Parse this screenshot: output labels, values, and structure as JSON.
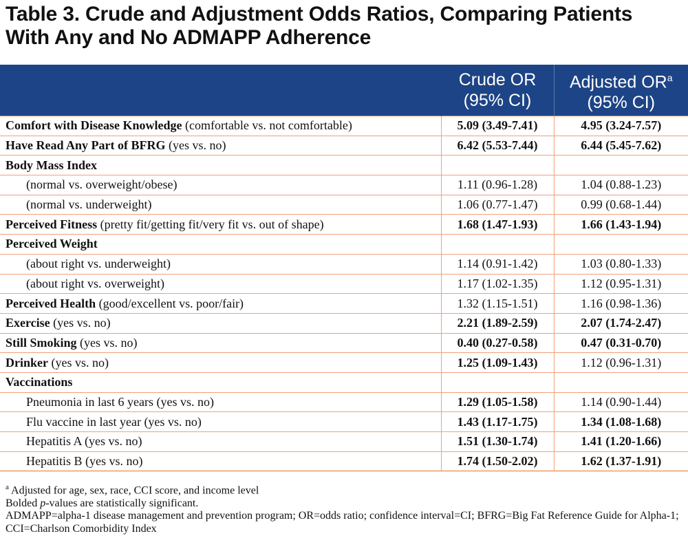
{
  "title": {
    "line1": "Table 3. Crude and Adjustment Odds Ratios, Comparing Patients",
    "line2": "With Any and No ADMAPP Adherence"
  },
  "header": {
    "crude_line1": "Crude OR",
    "crude_line2": "(95% CI)",
    "adjusted_line1": "Adjusted OR",
    "adjusted_sup": "a",
    "adjusted_line2": "(95% CI)"
  },
  "rows": [
    {
      "label_bold": "Comfort with Disease Knowledge",
      "label_rest": " (comfortable vs. not comfortable)",
      "indent": false,
      "crude": "5.09 (3.49-7.41)",
      "crude_bold": true,
      "adjusted": "4.95 (3.24-7.57)",
      "adjusted_bold": true
    },
    {
      "label_bold": "Have Read Any Part of BFRG",
      "label_rest": " (yes vs. no)",
      "indent": false,
      "crude": "6.42 (5.53-7.44)",
      "crude_bold": true,
      "adjusted": "6.44 (5.45-7.62)",
      "adjusted_bold": true
    },
    {
      "label_bold": "Body Mass Index",
      "label_rest": "",
      "indent": false,
      "crude": "",
      "crude_bold": false,
      "adjusted": "",
      "adjusted_bold": false
    },
    {
      "label_bold": "",
      "label_rest": "(normal vs. overweight/obese)",
      "indent": true,
      "crude": "1.11 (0.96-1.28)",
      "crude_bold": false,
      "adjusted": "1.04 (0.88-1.23)",
      "adjusted_bold": false
    },
    {
      "label_bold": "",
      "label_rest": "(normal vs. underweight)",
      "indent": true,
      "crude": "1.06 (0.77-1.47)",
      "crude_bold": false,
      "adjusted": "0.99 (0.68-1.44)",
      "adjusted_bold": false
    },
    {
      "label_bold": "Perceived Fitness",
      "label_rest": " (pretty fit/getting fit/very fit vs. out of shape)",
      "indent": false,
      "crude": "1.68 (1.47-1.93)",
      "crude_bold": true,
      "adjusted": "1.66 (1.43-1.94)",
      "adjusted_bold": true
    },
    {
      "label_bold": "Perceived Weight",
      "label_rest": "",
      "indent": false,
      "crude": "",
      "crude_bold": false,
      "adjusted": "",
      "adjusted_bold": false
    },
    {
      "label_bold": "",
      "label_rest": "(about right vs. underweight)",
      "indent": true,
      "crude": "1.14 (0.91-1.42)",
      "crude_bold": false,
      "adjusted": "1.03 (0.80-1.33)",
      "adjusted_bold": false
    },
    {
      "label_bold": "",
      "label_rest": "(about right vs. overweight)",
      "indent": true,
      "crude": "1.17 (1.02-1.35)",
      "crude_bold": false,
      "adjusted": "1.12 (0.95-1.31)",
      "adjusted_bold": false
    },
    {
      "label_bold": "Perceived Health",
      "label_rest": " (good/excellent vs. poor/fair)",
      "indent": false,
      "crude": "1.32 (1.15-1.51)",
      "crude_bold": false,
      "adjusted": "1.16 (0.98-1.36)",
      "adjusted_bold": false
    },
    {
      "label_bold": "Exercise",
      "label_rest": " (yes vs. no)",
      "indent": false,
      "crude": "2.21 (1.89-2.59)",
      "crude_bold": true,
      "adjusted": "2.07 (1.74-2.47)",
      "adjusted_bold": true
    },
    {
      "label_bold": "Still Smoking",
      "label_rest": " (yes vs. no)",
      "indent": false,
      "crude": "0.40 (0.27-0.58)",
      "crude_bold": true,
      "adjusted": "0.47 (0.31-0.70)",
      "adjusted_bold": true
    },
    {
      "label_bold": "Drinker",
      "label_rest": " (yes vs. no)",
      "indent": false,
      "crude": "1.25 (1.09-1.43)",
      "crude_bold": true,
      "adjusted": "1.12 (0.96-1.31)",
      "adjusted_bold": false
    },
    {
      "label_bold": "Vaccinations",
      "label_rest": "",
      "indent": false,
      "crude": "",
      "crude_bold": false,
      "adjusted": "",
      "adjusted_bold": false
    },
    {
      "label_bold": "",
      "label_rest": "Pneumonia in last 6 years (yes vs. no)",
      "indent": true,
      "crude": "1.29 (1.05-1.58)",
      "crude_bold": true,
      "adjusted": "1.14 (0.90-1.44)",
      "adjusted_bold": false
    },
    {
      "label_bold": "",
      "label_rest": "Flu vaccine in last year (yes vs. no)",
      "indent": true,
      "crude": "1.43 (1.17-1.75)",
      "crude_bold": true,
      "adjusted": "1.34 (1.08-1.68)",
      "adjusted_bold": true
    },
    {
      "label_bold": "",
      "label_rest": "Hepatitis A (yes vs. no)",
      "indent": true,
      "crude": "1.51 (1.30-1.74)",
      "crude_bold": true,
      "adjusted": "1.41 (1.20-1.66)",
      "adjusted_bold": true
    },
    {
      "label_bold": "",
      "label_rest": "Hepatitis B (yes vs. no)",
      "indent": true,
      "crude": "1.74 (1.50-2.02)",
      "crude_bold": true,
      "adjusted": "1.62 (1.37-1.91)",
      "adjusted_bold": true
    }
  ],
  "footnotes": {
    "a_marker": "a",
    "a_text": " Adjusted for age, sex, race, CCI score, and income level",
    "bolded_pre": "Bolded ",
    "bolded_italic": "p",
    "bolded_post": "-values are statistically significant.",
    "abbrev": "ADMAPP=alpha-1 disease management and prevention program; OR=odds ratio; confidence interval=CI; BFRG=Big Fat Reference Guide for Alpha-1; CCI=Charlson Comorbidity Index"
  },
  "colors": {
    "header_bg": "#1d4486",
    "rule": "#e8732d",
    "row_border": "#f1a07a"
  }
}
